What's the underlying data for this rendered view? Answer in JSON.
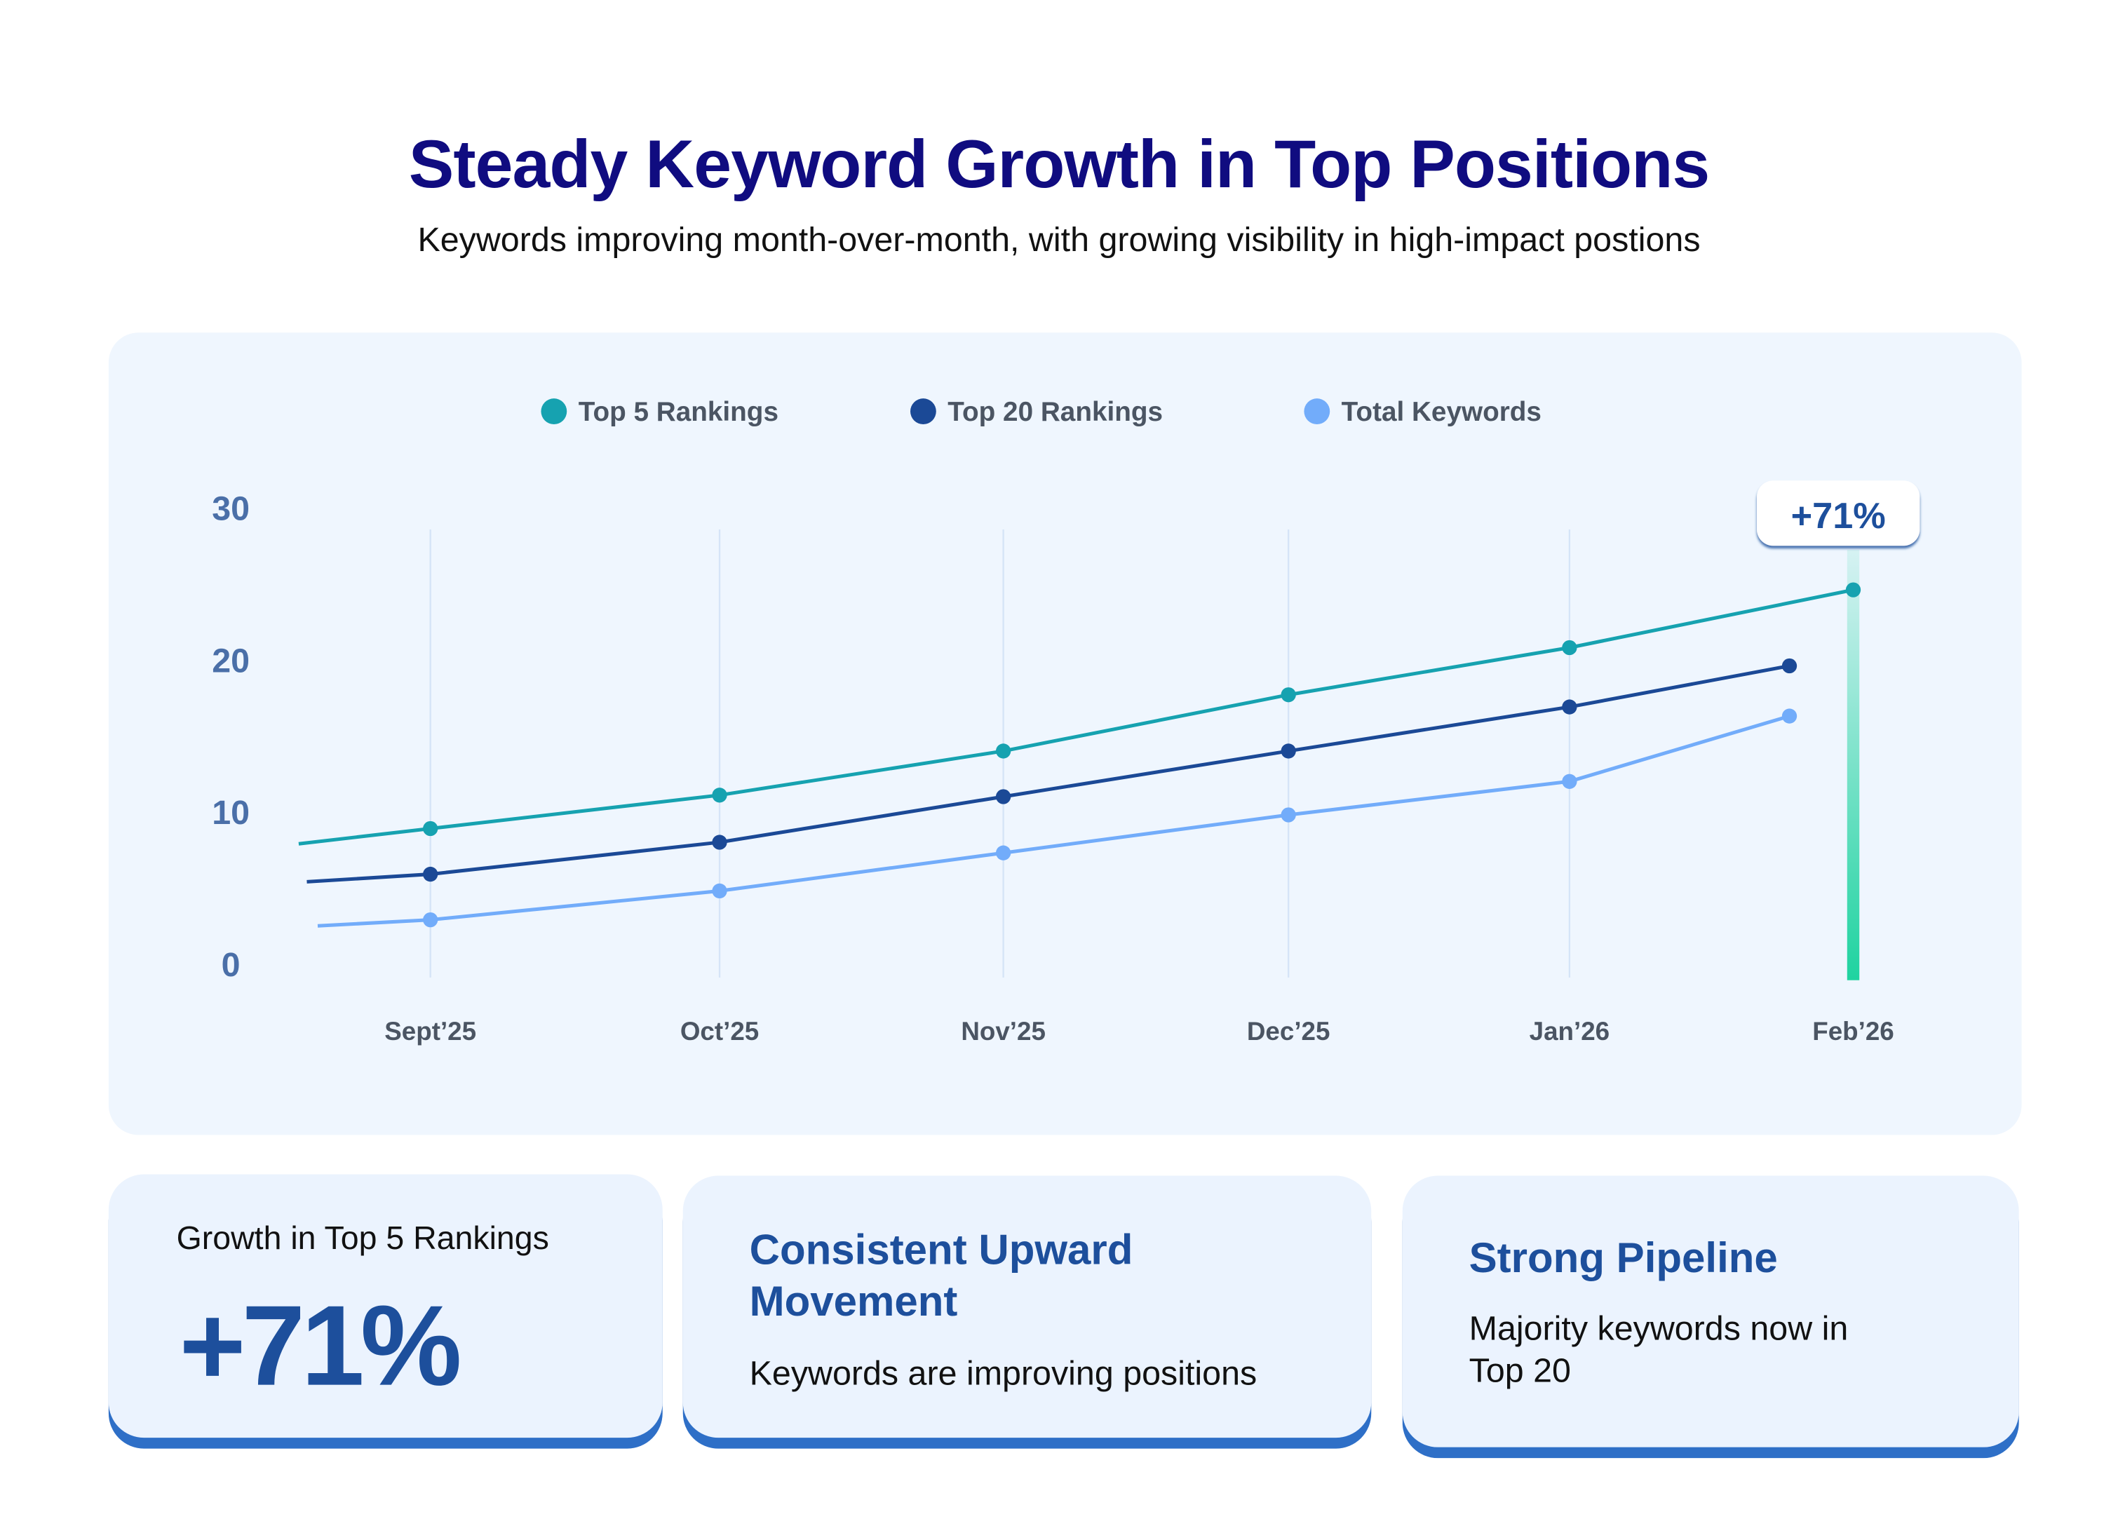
{
  "header": {
    "title": "Steady Keyword Growth in Top Positions",
    "subtitle": "Keywords improving month-over-month, with growing visibility in high-impact postions"
  },
  "chart_data": {
    "type": "line",
    "categories": [
      "Sept’25",
      "Oct’25",
      "Nov’25",
      "Dec’25",
      "Jan’26",
      "Feb’26"
    ],
    "yticks": [
      "0",
      "10",
      "20",
      "30"
    ],
    "ylim": [
      0,
      30
    ],
    "grid": "vertical",
    "legend_placement": "top-center",
    "series": [
      {
        "name": "Top 5 Rankings",
        "color": "#16a2b0",
        "lead_in": 7.9,
        "values": [
          8.9,
          11.1,
          14.0,
          17.7,
          20.8,
          24.6
        ]
      },
      {
        "name": "Top 20 Rankings",
        "color": "#1b4996",
        "lead_in": 5.4,
        "values": [
          5.9,
          8.0,
          11.0,
          14.0,
          16.9,
          19.6
        ]
      },
      {
        "name": "Total Keywords",
        "color": "#72acfa",
        "lead_in": 2.5,
        "values": [
          2.9,
          4.8,
          7.3,
          9.8,
          12.0,
          16.3
        ]
      }
    ],
    "highlight": {
      "category": "Feb’26",
      "label": "+71%",
      "color": "#1fd3a0"
    }
  },
  "cards": [
    {
      "label": "Growth in Top 5 Rankings",
      "value": "+71%"
    },
    {
      "heading": "Consistent Upward Movement",
      "text": "Keywords are improving positions"
    },
    {
      "heading": "Strong Pipeline",
      "text": "Majority keywords now in Top 20"
    }
  ]
}
